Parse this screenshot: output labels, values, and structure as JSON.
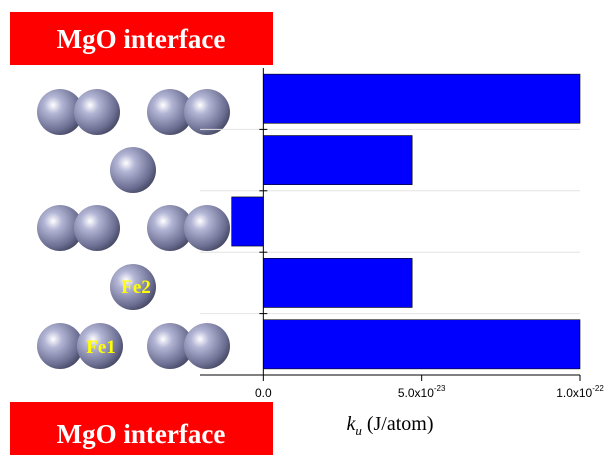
{
  "chart_data": {
    "type": "bar",
    "orientation": "horizontal",
    "categories": [
      null,
      null,
      null,
      null,
      null
    ],
    "values": [
      1e-22,
      4.7e-23,
      -1e-23,
      4.7e-23,
      1e-22
    ],
    "color": "#0000ff",
    "xlim": [
      -2e-23,
      1e-22
    ],
    "xticks": [
      {
        "value": 0,
        "label": "0.0"
      },
      {
        "value": 5e-23,
        "label": "5.0x10",
        "exponent": "-23"
      },
      {
        "value": 1e-22,
        "label": "1.0x10",
        "exponent": "-22"
      }
    ],
    "xlabel": {
      "symbol": "k",
      "subscript": "u",
      "unit": "(J/atom)"
    },
    "annotations": {
      "top_banner": "MgO interface",
      "bottom_banner": "MgO interface",
      "fe1": "Fe1",
      "fe2": "Fe2"
    }
  }
}
